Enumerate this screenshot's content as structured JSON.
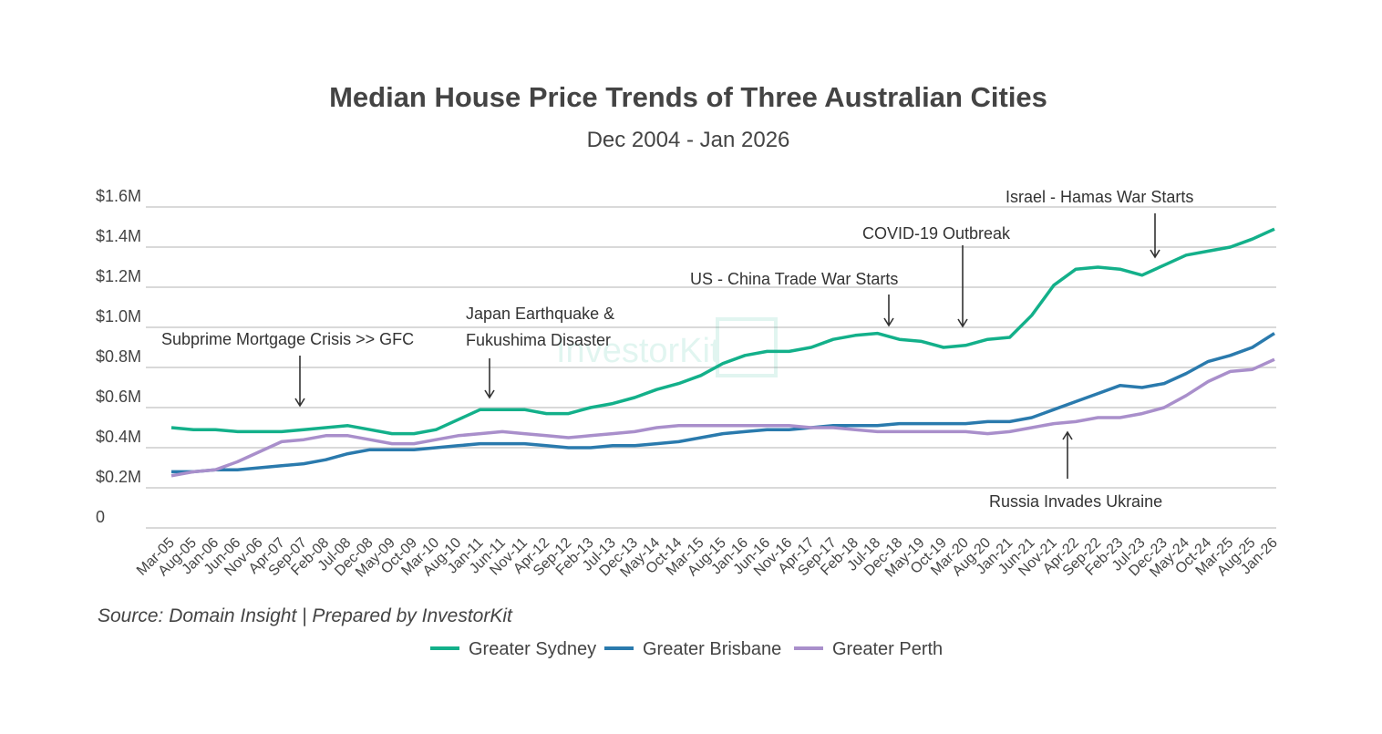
{
  "chart_data": {
    "type": "line",
    "title": "Median House Price Trends of Three Australian Cities",
    "subtitle": "Dec 2004 - Jan 2026",
    "source": "Source: Domain Insight | Prepared by InvestorKit",
    "watermark": "InvestorKit",
    "ylim": [
      0,
      1.6
    ],
    "yunit": "$M",
    "yticks": [
      "0",
      "$0.2M",
      "$0.4M",
      "$0.6M",
      "$0.8M",
      "$1.0M",
      "$1.2M",
      "$1.4M",
      "$1.6M"
    ],
    "grid": true,
    "legend_position": "bottom",
    "x": [
      "Mar-05",
      "Aug-05",
      "Jan-06",
      "Jun-06",
      "Nov-06",
      "Apr-07",
      "Sep-07",
      "Feb-08",
      "Jul-08",
      "Dec-08",
      "May-09",
      "Oct-09",
      "Mar-10",
      "Aug-10",
      "Jan-11",
      "Jun-11",
      "Nov-11",
      "Apr-12",
      "Sep-12",
      "Feb-13",
      "Jul-13",
      "Dec-13",
      "May-14",
      "Oct-14",
      "Mar-15",
      "Aug-15",
      "Jan-16",
      "Jun-16",
      "Nov-16",
      "Apr-17",
      "Sep-17",
      "Feb-18",
      "Jul-18",
      "Dec-18",
      "May-19",
      "Oct-19",
      "Mar-20",
      "Aug-20",
      "Jan-21",
      "Jun-21",
      "Nov-21",
      "Apr-22",
      "Sep-22",
      "Feb-23",
      "Jul-23",
      "Dec-23",
      "May-24",
      "Oct-24",
      "Mar-25",
      "Aug-25",
      "Jan-26"
    ],
    "series": [
      {
        "name": "Greater Sydney",
        "color": "#13b08a",
        "values": [
          0.5,
          0.49,
          0.49,
          0.48,
          0.48,
          0.48,
          0.49,
          0.5,
          0.51,
          0.49,
          0.47,
          0.47,
          0.49,
          0.54,
          0.59,
          0.59,
          0.59,
          0.57,
          0.57,
          0.6,
          0.62,
          0.65,
          0.69,
          0.72,
          0.76,
          0.82,
          0.86,
          0.88,
          0.88,
          0.9,
          0.94,
          0.96,
          0.97,
          0.94,
          0.93,
          0.9,
          0.91,
          0.94,
          0.95,
          1.06,
          1.21,
          1.29,
          1.3,
          1.29,
          1.26,
          1.31,
          1.36,
          1.38,
          1.4,
          1.44,
          1.49
        ]
      },
      {
        "name": "Greater Brisbane",
        "color": "#2a7aad",
        "values": [
          0.28,
          0.28,
          0.29,
          0.29,
          0.3,
          0.31,
          0.32,
          0.34,
          0.37,
          0.39,
          0.39,
          0.39,
          0.4,
          0.41,
          0.42,
          0.42,
          0.42,
          0.41,
          0.4,
          0.4,
          0.41,
          0.41,
          0.42,
          0.43,
          0.45,
          0.47,
          0.48,
          0.49,
          0.49,
          0.5,
          0.51,
          0.51,
          0.51,
          0.52,
          0.52,
          0.52,
          0.52,
          0.53,
          0.53,
          0.55,
          0.59,
          0.63,
          0.67,
          0.71,
          0.7,
          0.72,
          0.77,
          0.83,
          0.86,
          0.9,
          0.97
        ]
      },
      {
        "name": "Greater Perth",
        "color": "#a98fcb",
        "values": [
          0.26,
          0.28,
          0.29,
          0.33,
          0.38,
          0.43,
          0.44,
          0.46,
          0.46,
          0.44,
          0.42,
          0.42,
          0.44,
          0.46,
          0.47,
          0.48,
          0.47,
          0.46,
          0.45,
          0.46,
          0.47,
          0.48,
          0.5,
          0.51,
          0.51,
          0.51,
          0.51,
          0.51,
          0.51,
          0.5,
          0.5,
          0.49,
          0.48,
          0.48,
          0.48,
          0.48,
          0.48,
          0.47,
          0.48,
          0.5,
          0.52,
          0.53,
          0.55,
          0.55,
          0.57,
          0.6,
          0.66,
          0.73,
          0.78,
          0.79,
          0.84
        ]
      }
    ],
    "annotations": [
      {
        "text": "Subprime Mortgage Crisis >> GFC"
      },
      {
        "text": "Japan Earthquake &"
      },
      {
        "text": "Fukushima Disaster"
      },
      {
        "text": "US - China Trade War Starts"
      },
      {
        "text": "COVID-19 Outbreak"
      },
      {
        "text": "Russia Invades Ukraine"
      },
      {
        "text": "Israel - Hamas War Starts"
      }
    ]
  }
}
